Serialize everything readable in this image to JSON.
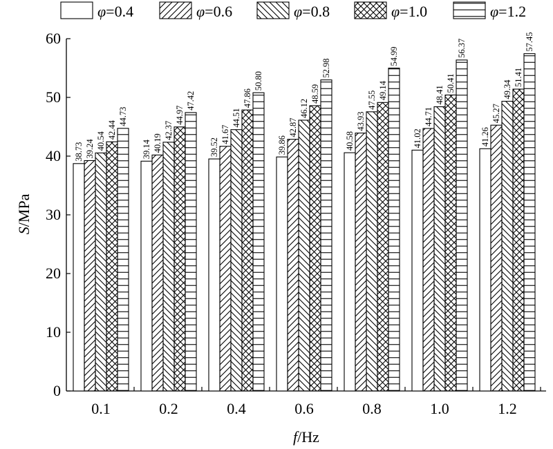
{
  "chart_data": {
    "type": "bar",
    "xlabel_italic": "f",
    "xlabel_rest": "/Hz",
    "ylabel_italic": "S",
    "ylabel_rest": "/MPa",
    "ylim": [
      0,
      60
    ],
    "yticks": [
      0,
      10,
      20,
      30,
      40,
      50,
      60
    ],
    "categories": [
      "0.1",
      "0.2",
      "0.4",
      "0.6",
      "0.8",
      "1.0",
      "1.2"
    ],
    "legend_position": "top",
    "series": [
      {
        "name": "φ=0.4",
        "pattern": "none",
        "values": [
          38.73,
          39.14,
          39.52,
          39.86,
          40.58,
          41.02,
          41.26
        ],
        "labels": [
          "38.73",
          "39.14",
          "39.52",
          "39.86",
          "40.58",
          "41.02",
          "41.26"
        ]
      },
      {
        "name": "φ=0.6",
        "pattern": "diag-up",
        "values": [
          39.24,
          40.19,
          41.67,
          42.87,
          43.93,
          44.71,
          45.27
        ],
        "labels": [
          "39.24",
          "40.19",
          "41.67",
          "42.87",
          "43.93",
          "44.71",
          "45.27"
        ]
      },
      {
        "name": "φ=0.8",
        "pattern": "diag-down",
        "values": [
          40.54,
          42.37,
          44.51,
          46.12,
          47.55,
          48.41,
          49.34
        ],
        "labels": [
          "40.54",
          "42.37",
          "44.51",
          "46.12",
          "47.55",
          "48.41",
          "49.34"
        ]
      },
      {
        "name": "φ=1.0",
        "pattern": "cross",
        "values": [
          42.44,
          44.97,
          47.86,
          48.59,
          49.14,
          50.41,
          51.41
        ],
        "labels": [
          "42.44",
          "44.97",
          "47.86",
          "48.59",
          "49.14",
          "50.41",
          "51.41"
        ]
      },
      {
        "name": "φ=1.2",
        "pattern": "horizontal",
        "values": [
          44.73,
          47.42,
          50.8,
          52.98,
          54.99,
          56.37,
          57.45
        ],
        "labels": [
          "44.73",
          "47.42",
          "50.80",
          "52.98",
          "54.99",
          "56.37",
          "57.45"
        ]
      }
    ]
  }
}
